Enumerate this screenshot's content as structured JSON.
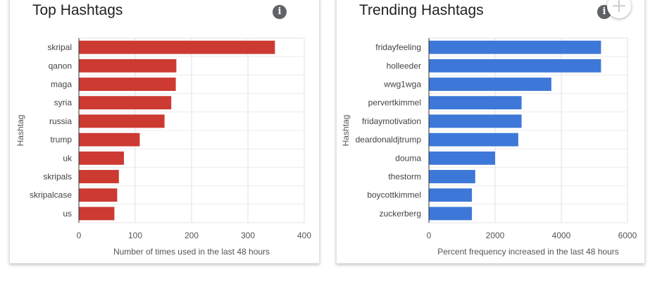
{
  "cards": [
    {
      "title": "Top Hashtags",
      "info_icon": "info-icon"
    },
    {
      "title": "Trending Hashtags",
      "info_icon": "info-icon"
    }
  ],
  "add_icon": "plus-icon",
  "chart_data": [
    {
      "type": "bar",
      "orientation": "horizontal",
      "categories": [
        "skripal",
        "qanon",
        "maga",
        "syria",
        "russia",
        "trump",
        "uk",
        "skripals",
        "skripalcase",
        "us"
      ],
      "values": [
        348,
        173,
        172,
        164,
        152,
        108,
        80,
        71,
        68,
        63
      ],
      "xlabel": "Number of times used in the last 48 hours",
      "ylabel": "Hashtag",
      "xlim": [
        0,
        400
      ],
      "xticks": [
        0,
        100,
        200,
        300,
        400
      ],
      "grid": true,
      "color": "#cc3a32"
    },
    {
      "type": "bar",
      "orientation": "horizontal",
      "categories": [
        "fridayfeeling",
        "holleeder",
        "wwg1wga",
        "pervertkimmel",
        "fridaymotivation",
        "deardonaldjtrump",
        "douma",
        "thestorm",
        "boycottkimmel",
        "zuckerberg"
      ],
      "values": [
        5200,
        5200,
        3700,
        2800,
        2800,
        2700,
        2000,
        1400,
        1300,
        1300
      ],
      "xlabel": "Percent frequency increased in the last 48 hours",
      "ylabel": "Hashtag",
      "xlim": [
        0,
        6000
      ],
      "xticks": [
        0,
        2000,
        4000,
        6000
      ],
      "grid": true,
      "color": "#3d78d8"
    }
  ]
}
